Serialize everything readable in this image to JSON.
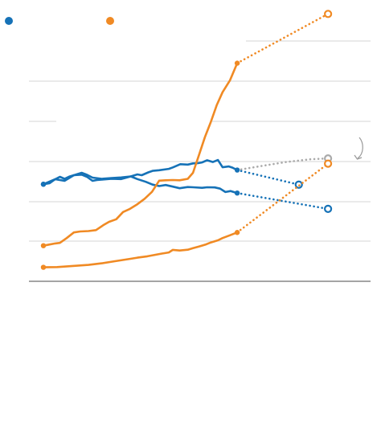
{
  "colors": {
    "blue": "#1672b7",
    "orange": "#f08a24",
    "gray": "#aaaaaa",
    "grid": "#d6d6d6",
    "axis": "#6e6e6e"
  },
  "legend": [
    {
      "name": "",
      "color": "#1672b7",
      "icon": "blue-dot-icon"
    },
    {
      "name": "",
      "color": "#f08a24",
      "icon": "orange-dot-icon"
    }
  ],
  "annotation": {
    "icon": "curved-arrow-icon"
  },
  "chart_data": {
    "type": "line",
    "title": "",
    "xlabel": "",
    "ylabel": "",
    "xlim": [
      0,
      100
    ],
    "ylim": [
      0,
      100
    ],
    "grid": true,
    "legend_position": "top-left",
    "series": [
      {
        "id": "blue-upper",
        "color": "#1672b7",
        "history": [
          [
            0,
            48.5
          ],
          [
            2,
            49
          ],
          [
            3.8,
            51
          ],
          [
            5.3,
            52.2
          ],
          [
            6.8,
            51.2
          ],
          [
            8.3,
            52.3
          ],
          [
            9.8,
            53
          ],
          [
            12.3,
            54.2
          ],
          [
            14,
            53.2
          ],
          [
            15.8,
            51.8
          ],
          [
            18.8,
            51.2
          ],
          [
            21.9,
            51.6
          ],
          [
            25,
            51.9
          ],
          [
            28.1,
            52.4
          ],
          [
            30.2,
            53.4
          ],
          [
            31.6,
            53
          ],
          [
            33.7,
            54.4
          ],
          [
            35.1,
            55.2
          ],
          [
            37.2,
            55.5
          ],
          [
            40.3,
            56.2
          ],
          [
            41.6,
            56.9
          ],
          [
            44,
            58.5
          ],
          [
            46.4,
            58.3
          ],
          [
            48.1,
            58.9
          ],
          [
            49.5,
            59
          ],
          [
            51,
            59.4
          ],
          [
            52.6,
            60.5
          ],
          [
            54.5,
            59.6
          ],
          [
            56.1,
            60.6
          ],
          [
            57.6,
            57
          ],
          [
            59.6,
            57.4
          ],
          [
            60.8,
            56.8
          ],
          [
            62.3,
            55.6
          ]
        ],
        "projection": [
          [
            62.3,
            55.6
          ],
          [
            82.1,
            48.3
          ]
        ]
      },
      {
        "id": "blue-lower",
        "color": "#1672b7",
        "history": [
          [
            0,
            48.5
          ],
          [
            3.8,
            51
          ],
          [
            6.8,
            50.2
          ],
          [
            9.8,
            53
          ],
          [
            12.3,
            53.3
          ],
          [
            14,
            52.2
          ],
          [
            15.8,
            50.2
          ],
          [
            17.2,
            50.6
          ],
          [
            18.8,
            50.8
          ],
          [
            21.9,
            51.2
          ],
          [
            25,
            51.1
          ],
          [
            28.1,
            52.4
          ],
          [
            30.2,
            51.1
          ],
          [
            32.9,
            49.7
          ],
          [
            35.1,
            48.3
          ],
          [
            37.2,
            47.6
          ],
          [
            39.3,
            48.1
          ],
          [
            41.6,
            47.3
          ],
          [
            43.8,
            46.5
          ],
          [
            46.4,
            47.1
          ],
          [
            48.1,
            47
          ],
          [
            51,
            46.7
          ],
          [
            52.6,
            47
          ],
          [
            55.1,
            46.9
          ],
          [
            56.8,
            46.3
          ],
          [
            58.5,
            44.6
          ],
          [
            60.2,
            45.1
          ],
          [
            62.3,
            44.1
          ]
        ],
        "projection": [
          [
            62.3,
            44.1
          ],
          [
            91.5,
            36.2
          ]
        ]
      },
      {
        "id": "orange-upper",
        "color": "#f08a24",
        "history": [
          [
            0,
            17.8
          ],
          [
            2,
            18.4
          ],
          [
            3.8,
            18.9
          ],
          [
            5.3,
            19.2
          ],
          [
            7.5,
            21.6
          ],
          [
            9.8,
            24.4
          ],
          [
            11.8,
            24.9
          ],
          [
            14.5,
            25.1
          ],
          [
            16.9,
            25.6
          ],
          [
            19.2,
            28
          ],
          [
            21.1,
            29.7
          ],
          [
            23.4,
            31
          ],
          [
            25.6,
            34.6
          ],
          [
            27.8,
            36.2
          ],
          [
            30.2,
            38.5
          ],
          [
            32.5,
            41.2
          ],
          [
            34.9,
            44.7
          ],
          [
            37.2,
            50.3
          ],
          [
            39.3,
            50.5
          ],
          [
            41.6,
            50.6
          ],
          [
            43.8,
            50.5
          ],
          [
            46.4,
            51.2
          ],
          [
            48.1,
            54.2
          ],
          [
            50,
            63
          ],
          [
            51.9,
            72
          ],
          [
            53.8,
            79.5
          ],
          [
            55.7,
            88
          ],
          [
            57.6,
            94.5
          ],
          [
            60,
            100.5
          ],
          [
            62.3,
            109
          ]
        ],
        "projection": [
          [
            62.3,
            109
          ],
          [
            91.5,
            133.6
          ]
        ]
      },
      {
        "id": "orange-lower",
        "color": "#f08a24",
        "history": [
          [
            0,
            7
          ],
          [
            4.4,
            7.1
          ],
          [
            9,
            7.6
          ],
          [
            14.5,
            8.2
          ],
          [
            18.8,
            9
          ],
          [
            22.8,
            10
          ],
          [
            27.8,
            11.2
          ],
          [
            30.2,
            11.8
          ],
          [
            33.4,
            12.5
          ],
          [
            35.5,
            13.1
          ],
          [
            37.9,
            13.8
          ],
          [
            40.3,
            14.4
          ],
          [
            41.6,
            15.7
          ],
          [
            43.8,
            15.4
          ],
          [
            46.4,
            15.8
          ],
          [
            48.1,
            16.6
          ],
          [
            50,
            17.4
          ],
          [
            52.2,
            18.4
          ],
          [
            53.8,
            19.4
          ],
          [
            56.1,
            20.5
          ],
          [
            57.6,
            21.6
          ],
          [
            60,
            23
          ],
          [
            62.3,
            24.4
          ]
        ],
        "projection": [
          [
            62.3,
            24.4
          ],
          [
            91.5,
            58.8
          ]
        ]
      },
      {
        "id": "gray-projection",
        "color": "#aaaaaa",
        "history": [],
        "projection": [
          [
            62.3,
            55.6
          ],
          [
            70,
            57.6
          ],
          [
            78,
            59.6
          ],
          [
            86,
            61
          ],
          [
            91.5,
            61.4
          ]
        ]
      }
    ]
  }
}
